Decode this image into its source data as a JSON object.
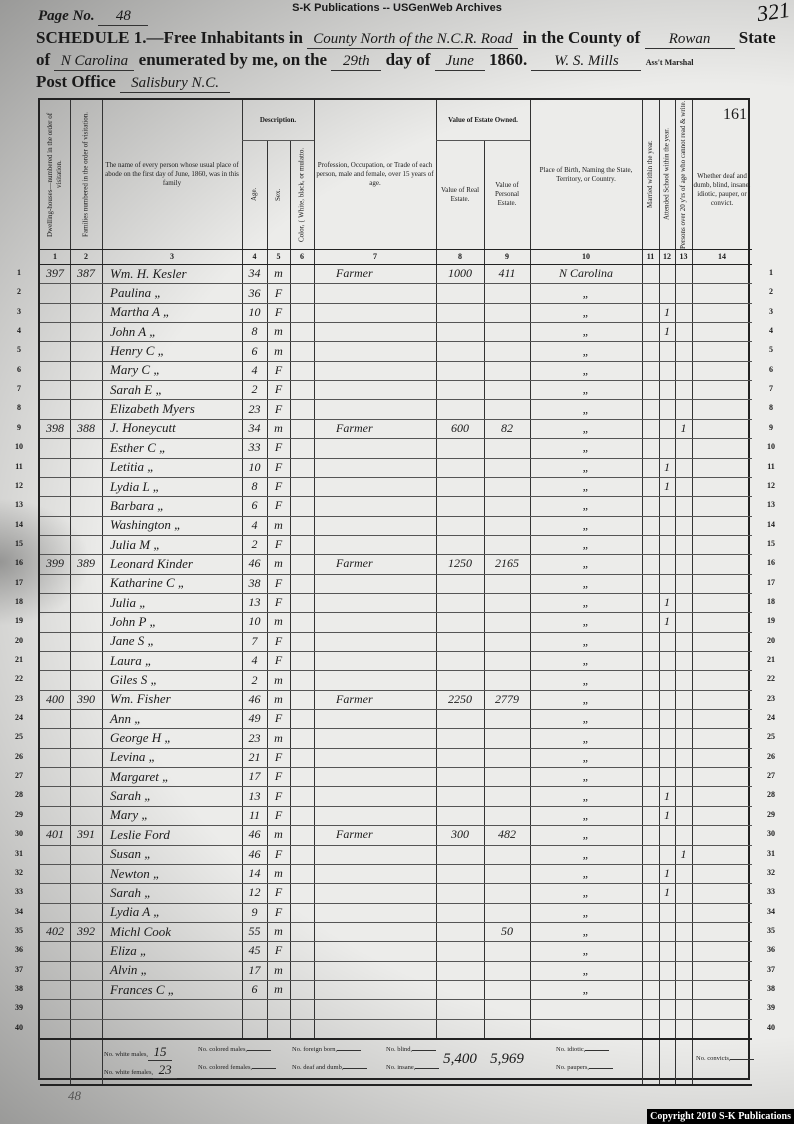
{
  "publisher": "S-K Publications -- USGenWeb Archives",
  "page_label": "Page No.",
  "page_no": "48",
  "stamp_number": "321",
  "header": {
    "schedule_label": "SCHEDULE 1.—Free Inhabitants in",
    "district": "County North of the N.C.R. Road",
    "county_label": "in the County of",
    "county": "Rowan",
    "state_label": "State",
    "of_label": "of",
    "state": "N Carolina",
    "enumerated_label": "enumerated by me, on the",
    "day": "29th",
    "day_of_label": "day of",
    "month": "June",
    "year": "1860.",
    "marshal": "W. S. Mills",
    "marshal_label": "Ass't Marshal",
    "post_office_label": "Post Office",
    "post_office": "Salisbury N.C."
  },
  "columns": {
    "c1": "Dwelling-houses—numbered in the order of visitation.",
    "c2": "Families numbered in the order of visitation.",
    "c3": "The name of every person whose usual place of abode on the first day of June, 1860, was in this family",
    "description": "Description.",
    "c4": "Age.",
    "c5": "Sex.",
    "c6": "Color, { White, black, or mulatto.",
    "c7": "Profession, Occupation, or Trade of each person, male and female, over 15 years of age.",
    "estate": "Value of Estate Owned.",
    "c8": "Value of Real Estate.",
    "c9": "Value of Personal Estate.",
    "c10": "Place of Birth, Naming the State, Territory, or Country.",
    "c11": "Married within the year.",
    "c12": "Attended School within the year.",
    "c13": "Persons over 20 y'rs of age who cannot read & write.",
    "c14": "Whether deaf and dumb, blind, insane, idiotic, pauper, or convict.",
    "sheet_number": "161",
    "numbers": [
      "1",
      "2",
      "3",
      "4",
      "5",
      "6",
      "7",
      "8",
      "9",
      "10",
      "11",
      "12",
      "13",
      "14"
    ]
  },
  "rows": [
    [
      "397",
      "387",
      "Wm. H. Kesler",
      "34",
      "m",
      "",
      "Farmer",
      "1000",
      "411",
      "N Carolina",
      "",
      "",
      "",
      ""
    ],
    [
      "",
      "",
      "Paulina „",
      "36",
      "F",
      "",
      "",
      "",
      "",
      "„",
      "",
      "",
      "",
      ""
    ],
    [
      "",
      "",
      "Martha A „",
      "10",
      "F",
      "",
      "",
      "",
      "",
      "„",
      "",
      "1",
      "",
      ""
    ],
    [
      "",
      "",
      "John A „",
      "8",
      "m",
      "",
      "",
      "",
      "",
      "„",
      "",
      "1",
      "",
      ""
    ],
    [
      "",
      "",
      "Henry C „",
      "6",
      "m",
      "",
      "",
      "",
      "",
      "„",
      "",
      "",
      "",
      ""
    ],
    [
      "",
      "",
      "Mary C „",
      "4",
      "F",
      "",
      "",
      "",
      "",
      "„",
      "",
      "",
      "",
      ""
    ],
    [
      "",
      "",
      "Sarah E „",
      "2",
      "F",
      "",
      "",
      "",
      "",
      "„",
      "",
      "",
      "",
      ""
    ],
    [
      "",
      "",
      "Elizabeth Myers",
      "23",
      "F",
      "",
      "",
      "",
      "",
      "„",
      "",
      "",
      "",
      ""
    ],
    [
      "398",
      "388",
      "J. Honeycutt",
      "34",
      "m",
      "",
      "Farmer",
      "600",
      "82",
      "„",
      "",
      "",
      "1",
      ""
    ],
    [
      "",
      "",
      "Esther C „",
      "33",
      "F",
      "",
      "",
      "",
      "",
      "„",
      "",
      "",
      "",
      ""
    ],
    [
      "",
      "",
      "Letitia „",
      "10",
      "F",
      "",
      "",
      "",
      "",
      "„",
      "",
      "1",
      "",
      ""
    ],
    [
      "",
      "",
      "Lydia L „",
      "8",
      "F",
      "",
      "",
      "",
      "",
      "„",
      "",
      "1",
      "",
      ""
    ],
    [
      "",
      "",
      "Barbara „",
      "6",
      "F",
      "",
      "",
      "",
      "",
      "„",
      "",
      "",
      "",
      ""
    ],
    [
      "",
      "",
      "Washington „",
      "4",
      "m",
      "",
      "",
      "",
      "",
      "„",
      "",
      "",
      "",
      ""
    ],
    [
      "",
      "",
      "Julia M „",
      "2",
      "F",
      "",
      "",
      "",
      "",
      "„",
      "",
      "",
      "",
      ""
    ],
    [
      "399",
      "389",
      "Leonard Kinder",
      "46",
      "m",
      "",
      "Farmer",
      "1250",
      "2165",
      "„",
      "",
      "",
      "",
      ""
    ],
    [
      "",
      "",
      "Katharine C „",
      "38",
      "F",
      "",
      "",
      "",
      "",
      "„",
      "",
      "",
      "",
      ""
    ],
    [
      "",
      "",
      "Julia „",
      "13",
      "F",
      "",
      "",
      "",
      "",
      "„",
      "",
      "1",
      "",
      ""
    ],
    [
      "",
      "",
      "John P „",
      "10",
      "m",
      "",
      "",
      "",
      "",
      "„",
      "",
      "1",
      "",
      ""
    ],
    [
      "",
      "",
      "Jane S „",
      "7",
      "F",
      "",
      "",
      "",
      "",
      "„",
      "",
      "",
      "",
      ""
    ],
    [
      "",
      "",
      "Laura „",
      "4",
      "F",
      "",
      "",
      "",
      "",
      "„",
      "",
      "",
      "",
      ""
    ],
    [
      "",
      "",
      "Giles S „",
      "2",
      "m",
      "",
      "",
      "",
      "",
      "„",
      "",
      "",
      "",
      ""
    ],
    [
      "400",
      "390",
      "Wm. Fisher",
      "46",
      "m",
      "",
      "Farmer",
      "2250",
      "2779",
      "„",
      "",
      "",
      "",
      ""
    ],
    [
      "",
      "",
      "Ann „",
      "49",
      "F",
      "",
      "",
      "",
      "",
      "„",
      "",
      "",
      "",
      ""
    ],
    [
      "",
      "",
      "George H „",
      "23",
      "m",
      "",
      "",
      "",
      "",
      "„",
      "",
      "",
      "",
      ""
    ],
    [
      "",
      "",
      "Levina „",
      "21",
      "F",
      "",
      "",
      "",
      "",
      "„",
      "",
      "",
      "",
      ""
    ],
    [
      "",
      "",
      "Margaret „",
      "17",
      "F",
      "",
      "",
      "",
      "",
      "„",
      "",
      "",
      "",
      ""
    ],
    [
      "",
      "",
      "Sarah „",
      "13",
      "F",
      "",
      "",
      "",
      "",
      "„",
      "",
      "1",
      "",
      ""
    ],
    [
      "",
      "",
      "Mary „",
      "11",
      "F",
      "",
      "",
      "",
      "",
      "„",
      "",
      "1",
      "",
      ""
    ],
    [
      "401",
      "391",
      "Leslie Ford",
      "46",
      "m",
      "",
      "Farmer",
      "300",
      "482",
      "„",
      "",
      "",
      "",
      ""
    ],
    [
      "",
      "",
      "Susan „",
      "46",
      "F",
      "",
      "",
      "",
      "",
      "„",
      "",
      "",
      "1",
      ""
    ],
    [
      "",
      "",
      "Newton „",
      "14",
      "m",
      "",
      "",
      "",
      "",
      "„",
      "",
      "1",
      "",
      ""
    ],
    [
      "",
      "",
      "Sarah „",
      "12",
      "F",
      "",
      "",
      "",
      "",
      "„",
      "",
      "1",
      "",
      ""
    ],
    [
      "",
      "",
      "Lydia A „",
      "9",
      "F",
      "",
      "",
      "",
      "",
      "„",
      "",
      "",
      "",
      ""
    ],
    [
      "402",
      "392",
      "Michl Cook",
      "55",
      "m",
      "",
      "",
      "",
      "50",
      "„",
      "",
      "",
      "",
      ""
    ],
    [
      "",
      "",
      "Eliza „",
      "45",
      "F",
      "",
      "",
      "",
      "",
      "„",
      "",
      "",
      "",
      ""
    ],
    [
      "",
      "",
      "Alvin „",
      "17",
      "m",
      "",
      "",
      "",
      "",
      "„",
      "",
      "",
      "",
      ""
    ],
    [
      "",
      "",
      "Frances C „",
      "6",
      "m",
      "",
      "",
      "",
      "",
      "„",
      "",
      "",
      "",
      ""
    ],
    [
      "",
      "",
      "",
      "",
      "",
      "",
      "",
      "",
      "",
      "",
      "",
      "",
      "",
      ""
    ],
    [
      "",
      "",
      "",
      "",
      "",
      "",
      "",
      "",
      "",
      "",
      "",
      "",
      "",
      ""
    ]
  ],
  "footer": {
    "white_males_label": "No. white males,",
    "white_males": "15",
    "white_females_label": "No. white females,",
    "white_females": "23",
    "colored_males_label": "No. colored males,",
    "colored_females_label": "No. colored females,",
    "foreign_born_label": "No. foreign born,",
    "deaf_dumb_label": "No. deaf and dumb,",
    "blind_label": "No. blind,",
    "insane_label": "No. insane,",
    "total_real": "5,400",
    "total_personal": "5,969",
    "idiotic_label": "No. idiotic,",
    "paupers_label": "No. paupers,",
    "convicts_label": "No. convicts,"
  },
  "margin_note": "48",
  "copyright": "Copyright 2010 S-K Publications"
}
